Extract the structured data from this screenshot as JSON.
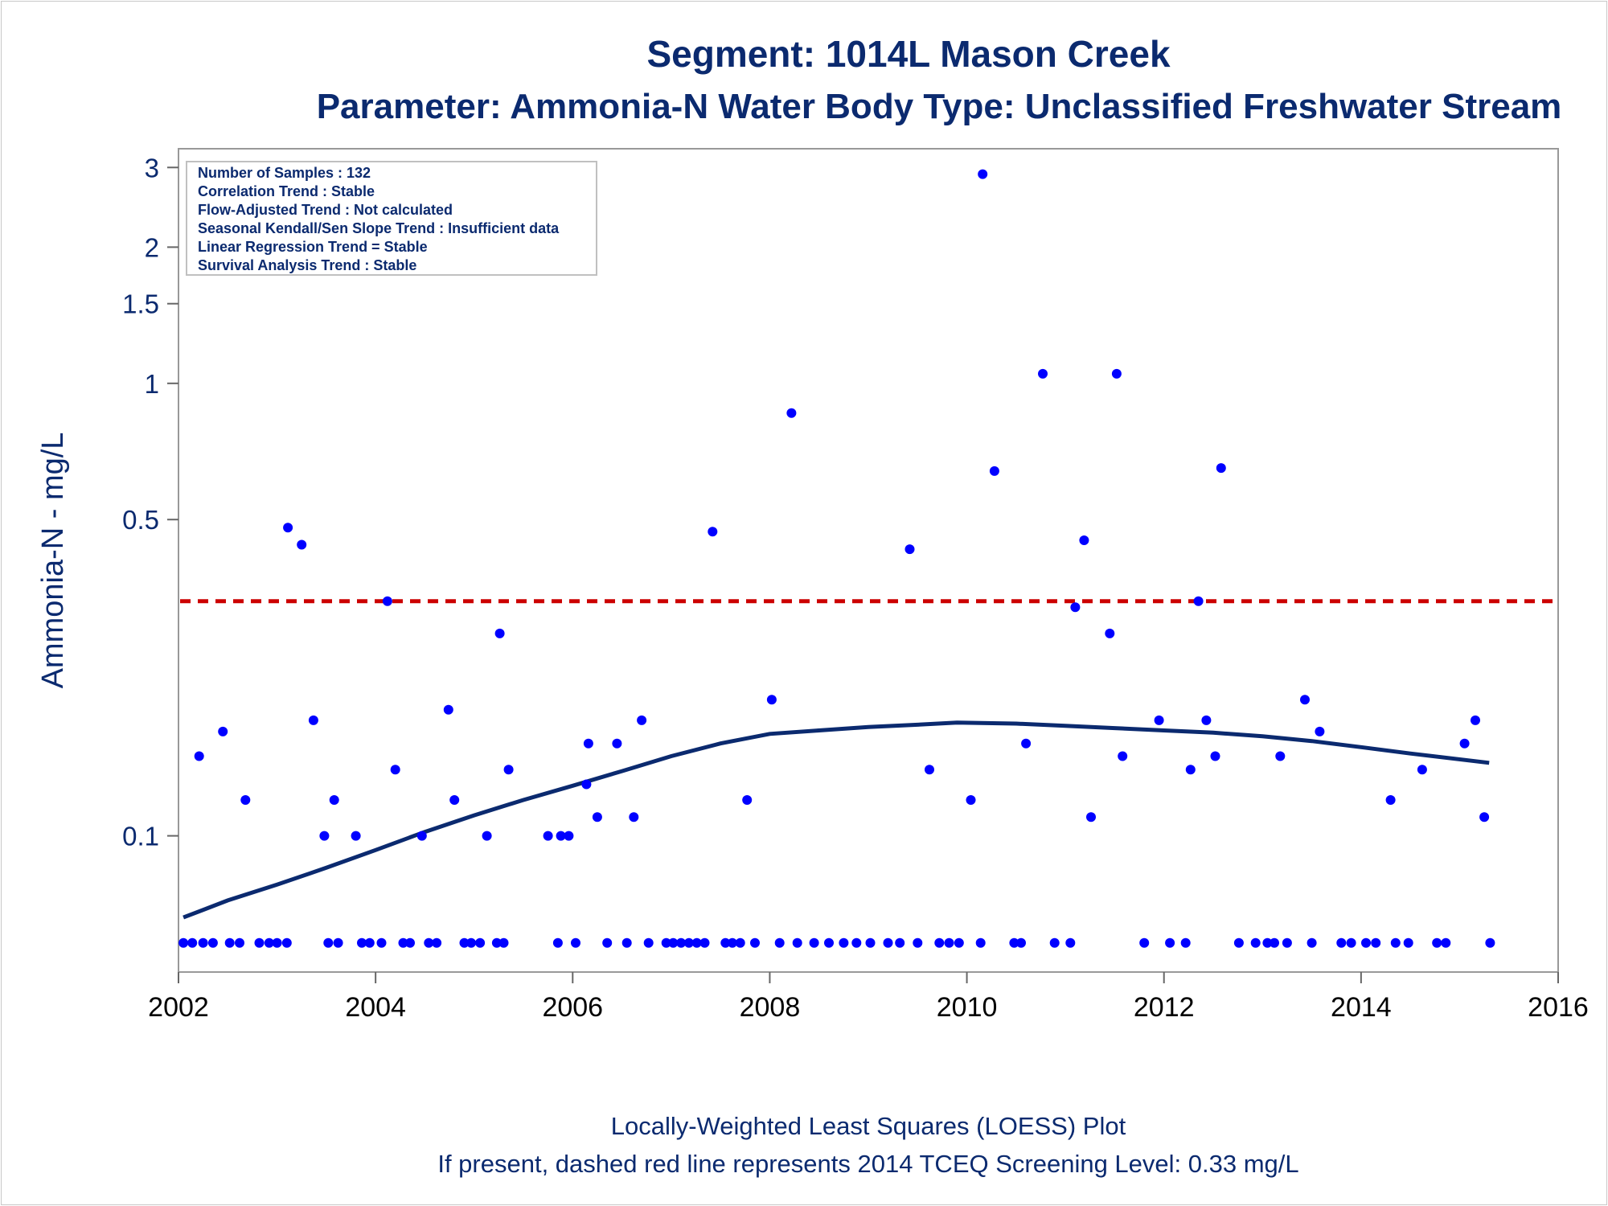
{
  "chart_data": {
    "type": "scatter",
    "title": "Segment: 1014L  Mason Creek",
    "subtitle": "Parameter: Ammonia-N   Water Body Type: Unclassified Freshwater Stream",
    "ylabel": "Ammonia-N - mg/L",
    "xlabel": "",
    "y_scale": "log",
    "xlim": [
      2002,
      2016
    ],
    "ylim": [
      0.05,
      3.3
    ],
    "x_ticks": [
      "2002",
      "2004",
      "2006",
      "2008",
      "2010",
      "2012",
      "2014",
      "2016"
    ],
    "y_ticks": [
      "0.1",
      "0.5",
      "1",
      "1.5",
      "2",
      "3"
    ],
    "grid": false,
    "colors": {
      "points": "#0000ff",
      "loess": "#0b2a6f",
      "screening": "#cc0000",
      "text": "#0b2a6f"
    },
    "info_box": [
      "Number of Samples : 132",
      "Correlation Trend : Stable",
      "Flow-Adjusted Trend : Not calculated",
      "Seasonal Kendall/Sen Slope Trend : Insufficient data",
      "Linear Regression Trend = Stable",
      "Survival Analysis Trend : Stable"
    ],
    "screening_level": 0.33,
    "loess": [
      [
        2002.05,
        0.066
      ],
      [
        2002.5,
        0.072
      ],
      [
        2003.0,
        0.078
      ],
      [
        2003.5,
        0.085
      ],
      [
        2004.0,
        0.093
      ],
      [
        2004.5,
        0.102
      ],
      [
        2005.0,
        0.111
      ],
      [
        2005.5,
        0.12
      ],
      [
        2006.0,
        0.129
      ],
      [
        2006.5,
        0.139
      ],
      [
        2007.0,
        0.15
      ],
      [
        2007.5,
        0.16
      ],
      [
        2008.0,
        0.168
      ],
      [
        2008.5,
        0.171
      ],
      [
        2009.0,
        0.174
      ],
      [
        2009.5,
        0.176
      ],
      [
        2009.9,
        0.178
      ],
      [
        2010.5,
        0.177
      ],
      [
        2011.0,
        0.175
      ],
      [
        2011.5,
        0.173
      ],
      [
        2012.0,
        0.171
      ],
      [
        2012.5,
        0.169
      ],
      [
        2013.0,
        0.166
      ],
      [
        2013.5,
        0.162
      ],
      [
        2014.0,
        0.157
      ],
      [
        2014.5,
        0.152
      ],
      [
        2015.3,
        0.145
      ]
    ],
    "points": [
      [
        2002.21,
        0.15
      ],
      [
        2002.45,
        0.17
      ],
      [
        2002.68,
        0.12
      ],
      [
        2003.11,
        0.48
      ],
      [
        2003.25,
        0.44
      ],
      [
        2003.37,
        0.18
      ],
      [
        2003.48,
        0.1
      ],
      [
        2003.58,
        0.12
      ],
      [
        2003.8,
        0.1
      ],
      [
        2004.12,
        0.33
      ],
      [
        2004.2,
        0.14
      ],
      [
        2004.47,
        0.1
      ],
      [
        2004.74,
        0.19
      ],
      [
        2004.8,
        0.12
      ],
      [
        2005.13,
        0.1
      ],
      [
        2005.26,
        0.28
      ],
      [
        2005.35,
        0.14
      ],
      [
        2005.75,
        0.1
      ],
      [
        2005.88,
        0.1
      ],
      [
        2005.96,
        0.1
      ],
      [
        2006.14,
        0.13
      ],
      [
        2006.16,
        0.16
      ],
      [
        2006.25,
        0.11
      ],
      [
        2006.45,
        0.16
      ],
      [
        2006.62,
        0.11
      ],
      [
        2006.7,
        0.18
      ],
      [
        2007.42,
        0.47
      ],
      [
        2007.77,
        0.12
      ],
      [
        2008.02,
        0.2
      ],
      [
        2008.22,
        0.86
      ],
      [
        2009.42,
        0.43
      ],
      [
        2009.62,
        0.14
      ],
      [
        2010.04,
        0.12
      ],
      [
        2010.16,
        2.9
      ],
      [
        2010.28,
        0.64
      ],
      [
        2010.6,
        0.16
      ],
      [
        2010.77,
        1.05
      ],
      [
        2011.1,
        0.32
      ],
      [
        2011.19,
        0.45
      ],
      [
        2011.26,
        0.11
      ],
      [
        2011.45,
        0.28
      ],
      [
        2011.52,
        1.05
      ],
      [
        2011.58,
        0.15
      ],
      [
        2011.95,
        0.18
      ],
      [
        2012.27,
        0.14
      ],
      [
        2012.35,
        0.33
      ],
      [
        2012.43,
        0.18
      ],
      [
        2012.52,
        0.15
      ],
      [
        2012.58,
        0.65
      ],
      [
        2013.18,
        0.15
      ],
      [
        2013.43,
        0.2
      ],
      [
        2013.58,
        0.17
      ],
      [
        2014.3,
        0.12
      ],
      [
        2014.62,
        0.14
      ],
      [
        2015.05,
        0.16
      ],
      [
        2015.16,
        0.18
      ],
      [
        2015.25,
        0.11
      ]
    ],
    "censored_x": [
      2002.05,
      2002.14,
      2002.25,
      2002.35,
      2002.52,
      2002.62,
      2002.82,
      2002.92,
      2003.0,
      2003.1,
      2003.52,
      2003.62,
      2003.86,
      2003.94,
      2004.06,
      2004.28,
      2004.35,
      2004.54,
      2004.62,
      2004.9,
      2004.97,
      2005.06,
      2005.23,
      2005.3,
      2005.85,
      2006.03,
      2006.35,
      2006.55,
      2006.77,
      2006.95,
      2007.02,
      2007.1,
      2007.18,
      2007.26,
      2007.34,
      2007.55,
      2007.62,
      2007.7,
      2007.85,
      2008.1,
      2008.28,
      2008.45,
      2008.6,
      2008.75,
      2008.88,
      2009.02,
      2009.2,
      2009.32,
      2009.5,
      2009.72,
      2009.82,
      2009.92,
      2010.14,
      2010.48,
      2010.55,
      2010.89,
      2011.05,
      2011.8,
      2012.06,
      2012.22,
      2012.76,
      2012.93,
      2013.05,
      2013.12,
      2013.25,
      2013.5,
      2013.8,
      2013.9,
      2014.05,
      2014.15,
      2014.35,
      2014.48,
      2014.77,
      2014.86,
      2015.31
    ],
    "censored_y": 0.058
  },
  "footer": {
    "line1": "Locally-Weighted Least Squares (LOESS) Plot",
    "line2": "If present, dashed red line represents 2014 TCEQ Screening Level: 0.33 mg/L"
  }
}
